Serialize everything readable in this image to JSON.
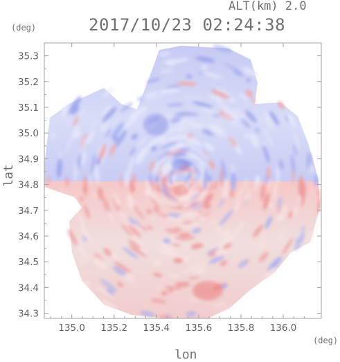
{
  "header": {
    "altitude_label": "ALT(km)",
    "altitude_value": "2.0",
    "datetime": "2017/10/23 02:24:38"
  },
  "colors": {
    "background": "#ffffff",
    "text": "#707070",
    "axis": "#a0a0a0",
    "positive": "#f08080",
    "neutral": "#eeeeee",
    "negative": "#8080ee"
  },
  "chart_data": {
    "type": "heatmap",
    "title": "2017/10/23 02:24:38",
    "xlabel": "lon",
    "ylabel": "lat",
    "xunit": "(deg)",
    "yunit": "(deg)",
    "xlim": [
      134.87,
      136.18
    ],
    "ylim": [
      34.28,
      35.35
    ],
    "xticks": [
      135.0,
      135.2,
      135.4,
      135.6,
      135.8,
      136.0
    ],
    "xtick_labels": [
      "135.0",
      "135.2",
      "135.4",
      "135.6",
      "135.8",
      "136.0"
    ],
    "yticks": [
      34.3,
      34.4,
      34.5,
      34.6,
      34.7,
      34.8,
      34.9,
      35.0,
      35.1,
      35.2,
      35.3
    ],
    "ytick_labels": [
      "34.3",
      "34.4",
      "34.5",
      "34.6",
      "34.7",
      "34.8",
      "34.9",
      "35.0",
      "35.1",
      "35.2",
      "35.3"
    ],
    "radar_center": [
      135.52,
      34.82
    ],
    "grid": false
  }
}
